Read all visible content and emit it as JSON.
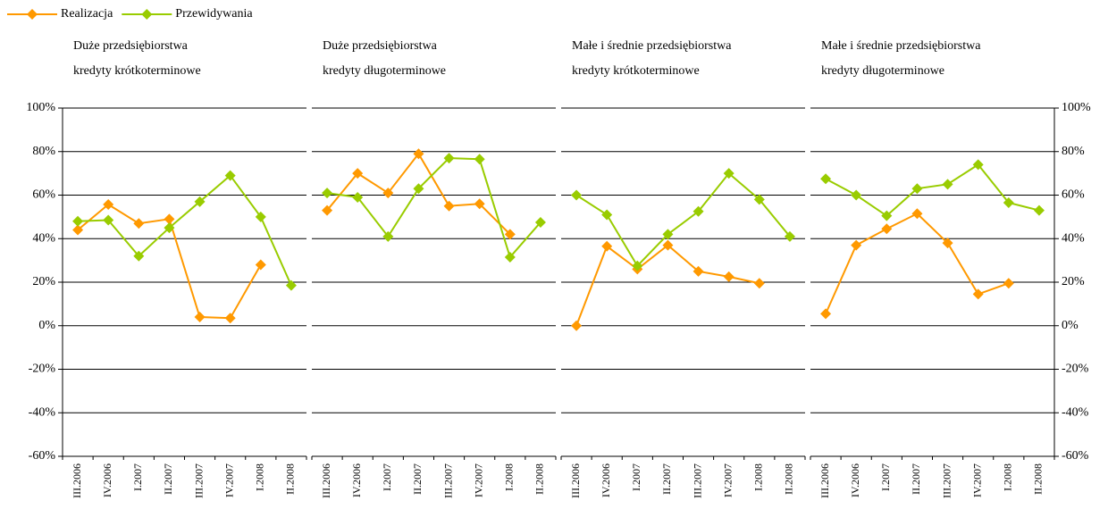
{
  "chart_data": [
    {
      "type": "line",
      "title": [
        "Duże przedsiębiorstwa",
        "kredyty krótkoterminowe"
      ],
      "categories": [
        "III.2006",
        "IV.2006",
        "I.2007",
        "II.2007",
        "III.2007",
        "IV.2007",
        "I.2008",
        "II.2008"
      ],
      "series": [
        {
          "name": "Realizacja",
          "color": "#ff9900",
          "values": [
            44,
            55.7,
            47,
            49,
            4,
            3.5,
            28,
            null
          ]
        },
        {
          "name": "Przewidywania",
          "color": "#99cc00",
          "values": [
            48,
            48.5,
            32,
            45,
            57,
            69,
            50,
            18.5
          ]
        }
      ],
      "ylim": [
        -60,
        100
      ],
      "y_axis_side": "left",
      "grid": true,
      "yticks": [
        {
          "value": -60,
          "label": "-60%"
        },
        {
          "value": -40,
          "label": "-40%"
        },
        {
          "value": -20,
          "label": "-20%"
        },
        {
          "value": 0,
          "label": "0%"
        },
        {
          "value": 20,
          "label": "20%"
        },
        {
          "value": 40,
          "label": "40%"
        },
        {
          "value": 60,
          "label": "60%"
        },
        {
          "value": 80,
          "label": "80%"
        },
        {
          "value": 100,
          "label": "100%"
        }
      ]
    },
    {
      "type": "line",
      "title": [
        "Duże przedsiębiorstwa",
        "kredyty długoterminowe"
      ],
      "categories": [
        "III.2006",
        "IV.2006",
        "I.2007",
        "II.2007",
        "III.2007",
        "IV.2007",
        "I.2008",
        "II.2008"
      ],
      "series": [
        {
          "color": "#ff9900",
          "values": [
            53,
            70,
            61,
            79,
            55,
            56,
            42,
            null
          ]
        },
        {
          "color": "#99cc00",
          "values": [
            61,
            59,
            41,
            63,
            77,
            76.5,
            31.5,
            47.5
          ]
        }
      ],
      "ylim": [
        -60,
        100
      ],
      "grid": true,
      "yticks": [
        -60,
        -40,
        -20,
        0,
        20,
        40,
        60,
        80,
        100
      ]
    },
    {
      "type": "line",
      "title": [
        "Małe i średnie  przedsiębiorstwa",
        "kredyty krótkoterminowe"
      ],
      "categories": [
        "III.2006",
        "IV.2006",
        "I.2007",
        "II.2007",
        "III.2007",
        "IV.2007",
        "I.2008",
        "II.2008"
      ],
      "series": [
        {
          "color": "#ff9900",
          "values": [
            0,
            36.5,
            26,
            37,
            25,
            22.5,
            19.5,
            null
          ]
        },
        {
          "color": "#99cc00",
          "values": [
            60,
            51,
            27.5,
            42,
            52.5,
            70,
            58,
            41
          ]
        }
      ],
      "ylim": [
        -60,
        100
      ],
      "grid": true,
      "yticks": [
        -60,
        -40,
        -20,
        0,
        20,
        40,
        60,
        80,
        100
      ]
    },
    {
      "type": "line",
      "title": [
        "Małe i średnie przedsiębiorstwa",
        "kredyty długoterminowe"
      ],
      "categories": [
        "III.2006",
        "IV.2006",
        "I.2007",
        "II.2007",
        "III.2007",
        "IV.2007",
        "I.2008",
        "II.2008"
      ],
      "series": [
        {
          "color": "#ff9900",
          "values": [
            5.5,
            37,
            44.5,
            51.5,
            38,
            14.5,
            19.5,
            null
          ]
        },
        {
          "color": "#99cc00",
          "values": [
            67.5,
            60,
            50.5,
            63,
            65,
            74,
            56.5,
            53
          ]
        }
      ],
      "ylim": [
        -60,
        100
      ],
      "y_axis_side": "right",
      "grid": true,
      "yticks": [
        {
          "value": -60,
          "label": "-60%"
        },
        {
          "value": -40,
          "label": "-40%"
        },
        {
          "value": -20,
          "label": "-20%"
        },
        {
          "value": 0,
          "label": "0%"
        },
        {
          "value": 20,
          "label": "20%"
        },
        {
          "value": 40,
          "label": "40%"
        },
        {
          "value": 60,
          "label": "60%"
        },
        {
          "value": 80,
          "label": "80%"
        },
        {
          "value": 100,
          "label": "100%"
        }
      ]
    }
  ]
}
